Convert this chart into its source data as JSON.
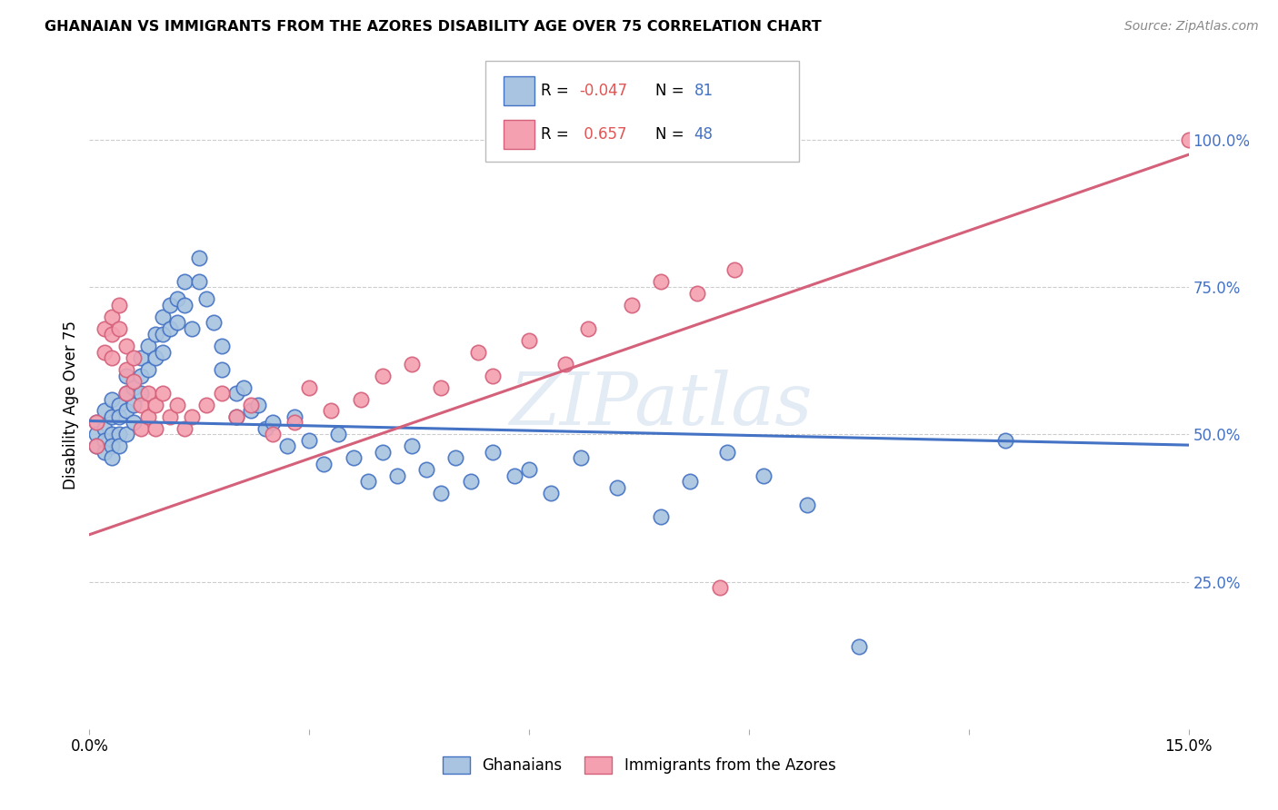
{
  "title": "GHANAIAN VS IMMIGRANTS FROM THE AZORES DISABILITY AGE OVER 75 CORRELATION CHART",
  "source": "Source: ZipAtlas.com",
  "ylabel": "Disability Age Over 75",
  "x_min": 0.0,
  "x_max": 0.15,
  "y_min": 0.0,
  "y_max": 1.1,
  "x_ticks": [
    0.0,
    0.03,
    0.06,
    0.09,
    0.12,
    0.15
  ],
  "x_tick_labels": [
    "0.0%",
    "",
    "",
    "",
    "",
    "15.0%"
  ],
  "y_tick_labels_right": [
    "25.0%",
    "50.0%",
    "75.0%",
    "100.0%"
  ],
  "y_tick_vals_right": [
    0.25,
    0.5,
    0.75,
    1.0
  ],
  "color_ghanaian": "#a8c4e0",
  "color_azores": "#f4a0b0",
  "color_line_ghanaian": "#4472c4",
  "color_line_azores": "#d4607a",
  "color_ticks_right": "#4472c4",
  "watermark": "ZIPatlas",
  "ghanaian_x": [
    0.001,
    0.001,
    0.001,
    0.002,
    0.002,
    0.002,
    0.002,
    0.003,
    0.003,
    0.003,
    0.003,
    0.003,
    0.004,
    0.004,
    0.004,
    0.004,
    0.005,
    0.005,
    0.005,
    0.005,
    0.006,
    0.006,
    0.006,
    0.007,
    0.007,
    0.007,
    0.008,
    0.008,
    0.009,
    0.009,
    0.01,
    0.01,
    0.01,
    0.011,
    0.011,
    0.012,
    0.012,
    0.013,
    0.013,
    0.014,
    0.015,
    0.015,
    0.016,
    0.017,
    0.018,
    0.018,
    0.02,
    0.02,
    0.021,
    0.022,
    0.023,
    0.024,
    0.025,
    0.027,
    0.028,
    0.03,
    0.032,
    0.034,
    0.036,
    0.038,
    0.04,
    0.042,
    0.044,
    0.046,
    0.048,
    0.05,
    0.052,
    0.055,
    0.058,
    0.06,
    0.063,
    0.067,
    0.072,
    0.078,
    0.082,
    0.087,
    0.092,
    0.098,
    0.105,
    0.125
  ],
  "ghanaian_y": [
    0.52,
    0.5,
    0.48,
    0.54,
    0.51,
    0.49,
    0.47,
    0.53,
    0.56,
    0.5,
    0.48,
    0.46,
    0.55,
    0.53,
    0.5,
    0.48,
    0.6,
    0.57,
    0.54,
    0.5,
    0.58,
    0.55,
    0.52,
    0.63,
    0.6,
    0.57,
    0.65,
    0.61,
    0.67,
    0.63,
    0.7,
    0.67,
    0.64,
    0.72,
    0.68,
    0.73,
    0.69,
    0.76,
    0.72,
    0.68,
    0.8,
    0.76,
    0.73,
    0.69,
    0.65,
    0.61,
    0.57,
    0.53,
    0.58,
    0.54,
    0.55,
    0.51,
    0.52,
    0.48,
    0.53,
    0.49,
    0.45,
    0.5,
    0.46,
    0.42,
    0.47,
    0.43,
    0.48,
    0.44,
    0.4,
    0.46,
    0.42,
    0.47,
    0.43,
    0.44,
    0.4,
    0.46,
    0.41,
    0.36,
    0.42,
    0.47,
    0.43,
    0.38,
    0.14,
    0.49
  ],
  "azores_x": [
    0.001,
    0.001,
    0.002,
    0.002,
    0.003,
    0.003,
    0.003,
    0.004,
    0.004,
    0.005,
    0.005,
    0.005,
    0.006,
    0.006,
    0.007,
    0.007,
    0.008,
    0.008,
    0.009,
    0.009,
    0.01,
    0.011,
    0.012,
    0.013,
    0.014,
    0.016,
    0.018,
    0.02,
    0.022,
    0.025,
    0.028,
    0.03,
    0.033,
    0.037,
    0.04,
    0.044,
    0.048,
    0.053,
    0.055,
    0.06,
    0.065,
    0.068,
    0.074,
    0.078,
    0.083,
    0.088,
    0.086,
    0.15
  ],
  "azores_y": [
    0.52,
    0.48,
    0.68,
    0.64,
    0.7,
    0.67,
    0.63,
    0.72,
    0.68,
    0.65,
    0.61,
    0.57,
    0.63,
    0.59,
    0.55,
    0.51,
    0.57,
    0.53,
    0.55,
    0.51,
    0.57,
    0.53,
    0.55,
    0.51,
    0.53,
    0.55,
    0.57,
    0.53,
    0.55,
    0.5,
    0.52,
    0.58,
    0.54,
    0.56,
    0.6,
    0.62,
    0.58,
    0.64,
    0.6,
    0.66,
    0.62,
    0.68,
    0.72,
    0.76,
    0.74,
    0.78,
    0.24,
    1.0
  ],
  "trend_g_x0": 0.0,
  "trend_g_y0": 0.523,
  "trend_g_x1": 0.15,
  "trend_g_y1": 0.482,
  "trend_a_x0": 0.0,
  "trend_a_y0": 0.33,
  "trend_a_x1": 0.15,
  "trend_a_y1": 0.975
}
